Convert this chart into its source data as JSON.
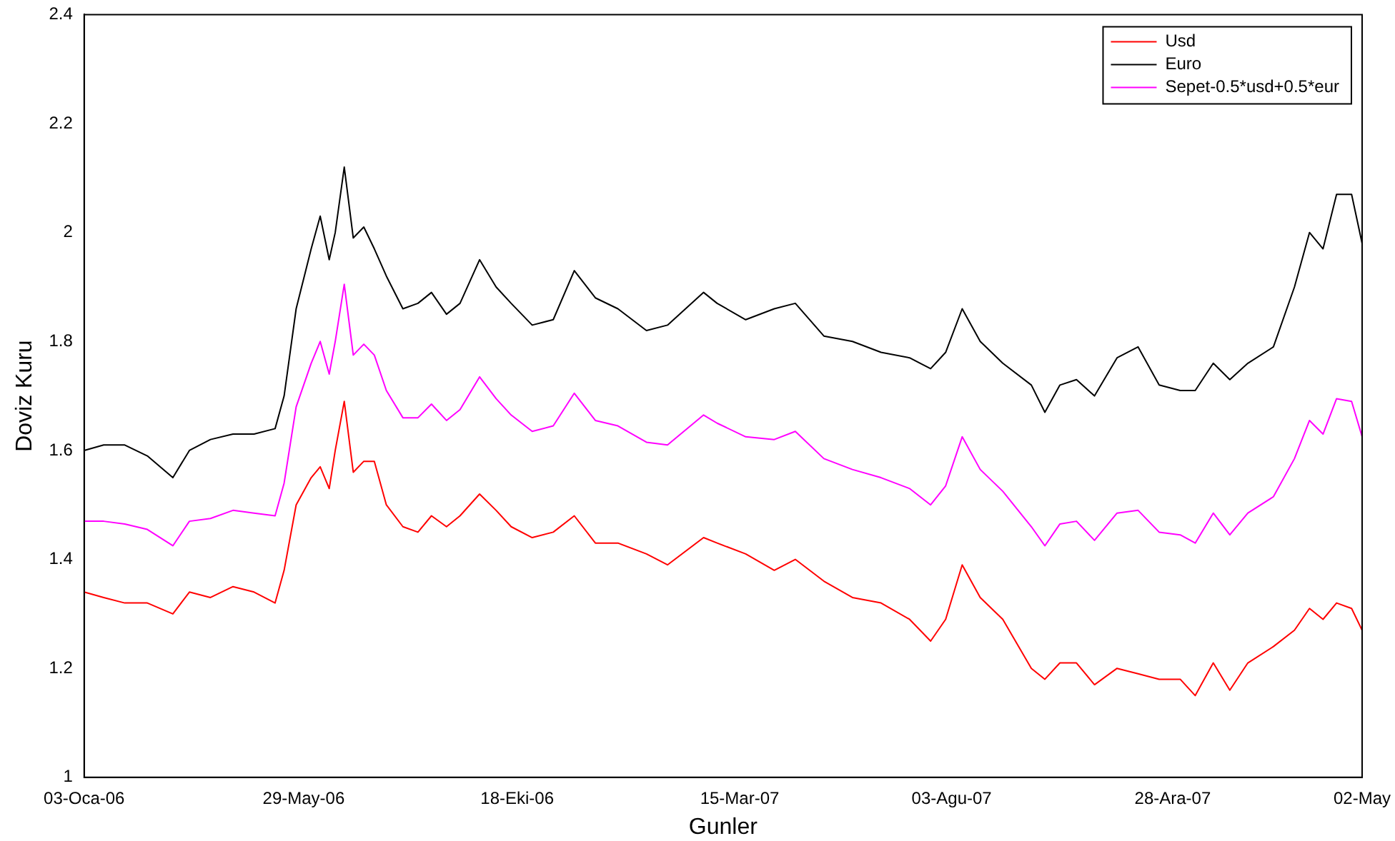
{
  "chart_data": {
    "type": "line",
    "xlabel": "Gunler",
    "ylabel": "Doviz Kuru",
    "x": [
      "2006-01-03",
      "2006-01-16",
      "2006-01-30",
      "2006-02-14",
      "2006-03-03",
      "2006-03-14",
      "2006-03-28",
      "2006-04-12",
      "2006-04-26",
      "2006-05-10",
      "2006-05-16",
      "2006-05-24",
      "2006-06-03",
      "2006-06-09",
      "2006-06-15",
      "2006-06-19",
      "2006-06-25",
      "2006-07-01",
      "2006-07-08",
      "2006-07-15",
      "2006-07-23",
      "2006-08-03",
      "2006-08-13",
      "2006-08-22",
      "2006-09-01",
      "2006-09-10",
      "2006-09-23",
      "2006-10-04",
      "2006-10-14",
      "2006-10-28",
      "2006-11-11",
      "2006-11-25",
      "2006-12-09",
      "2006-12-24",
      "2007-01-12",
      "2007-01-26",
      "2007-02-19",
      "2007-02-28",
      "2007-03-19",
      "2007-04-07",
      "2007-04-21",
      "2007-05-10",
      "2007-05-29",
      "2007-06-17",
      "2007-07-06",
      "2007-07-20",
      "2007-07-30",
      "2007-08-10",
      "2007-08-22",
      "2007-09-06",
      "2007-09-25",
      "2007-10-04",
      "2007-10-14",
      "2007-10-25",
      "2007-11-06",
      "2007-11-21",
      "2007-12-05",
      "2007-12-19",
      "2008-01-02",
      "2008-01-12",
      "2008-01-24",
      "2008-02-04",
      "2008-02-16",
      "2008-03-04",
      "2008-03-18",
      "2008-03-28",
      "2008-04-06",
      "2008-04-15",
      "2008-04-25",
      "2008-05-02"
    ],
    "series": [
      {
        "name": "Usd",
        "color": "#ff0000",
        "values": [
          1.34,
          1.33,
          1.32,
          1.32,
          1.3,
          1.34,
          1.33,
          1.35,
          1.34,
          1.32,
          1.38,
          1.5,
          1.55,
          1.57,
          1.53,
          1.6,
          1.69,
          1.56,
          1.58,
          1.58,
          1.5,
          1.46,
          1.45,
          1.48,
          1.46,
          1.48,
          1.52,
          1.49,
          1.46,
          1.44,
          1.45,
          1.48,
          1.43,
          1.43,
          1.41,
          1.39,
          1.44,
          1.43,
          1.41,
          1.38,
          1.4,
          1.36,
          1.33,
          1.32,
          1.29,
          1.25,
          1.29,
          1.39,
          1.33,
          1.29,
          1.2,
          1.18,
          1.21,
          1.21,
          1.17,
          1.2,
          1.19,
          1.18,
          1.18,
          1.15,
          1.21,
          1.16,
          1.21,
          1.24,
          1.27,
          1.31,
          1.29,
          1.32,
          1.31,
          1.27
        ]
      },
      {
        "name": "Euro",
        "color": "#000000",
        "values": [
          1.6,
          1.61,
          1.61,
          1.59,
          1.55,
          1.6,
          1.62,
          1.63,
          1.63,
          1.64,
          1.7,
          1.86,
          1.97,
          2.03,
          1.95,
          2.0,
          2.12,
          1.99,
          2.01,
          1.97,
          1.92,
          1.86,
          1.87,
          1.89,
          1.85,
          1.87,
          1.95,
          1.9,
          1.87,
          1.83,
          1.84,
          1.93,
          1.88,
          1.86,
          1.82,
          1.83,
          1.89,
          1.87,
          1.84,
          1.86,
          1.87,
          1.81,
          1.8,
          1.78,
          1.77,
          1.75,
          1.78,
          1.86,
          1.8,
          1.76,
          1.72,
          1.67,
          1.72,
          1.73,
          1.7,
          1.77,
          1.79,
          1.72,
          1.71,
          1.71,
          1.76,
          1.73,
          1.76,
          1.79,
          1.9,
          2.0,
          1.97,
          2.07,
          2.07,
          1.98
        ]
      },
      {
        "name": "Sepet-0.5*usd+0.5*eur",
        "color": "#ff00ff",
        "values": [
          1.47,
          1.47,
          1.465,
          1.455,
          1.425,
          1.47,
          1.475,
          1.49,
          1.485,
          1.48,
          1.54,
          1.68,
          1.76,
          1.8,
          1.74,
          1.8,
          1.905,
          1.775,
          1.795,
          1.775,
          1.71,
          1.66,
          1.66,
          1.685,
          1.655,
          1.675,
          1.735,
          1.695,
          1.665,
          1.635,
          1.645,
          1.705,
          1.655,
          1.645,
          1.615,
          1.61,
          1.665,
          1.65,
          1.625,
          1.62,
          1.635,
          1.585,
          1.565,
          1.55,
          1.53,
          1.5,
          1.535,
          1.625,
          1.565,
          1.525,
          1.46,
          1.425,
          1.465,
          1.47,
          1.435,
          1.485,
          1.49,
          1.45,
          1.445,
          1.43,
          1.485,
          1.445,
          1.485,
          1.515,
          1.585,
          1.655,
          1.63,
          1.695,
          1.69,
          1.625
        ]
      }
    ],
    "xlim": [
      "2006-01-03",
      "2008-05-02"
    ],
    "xticks": [
      {
        "value": "2006-01-03",
        "label": "03-Oca-06"
      },
      {
        "value": "2006-05-29",
        "label": "29-May-06"
      },
      {
        "value": "2006-10-18",
        "label": "18-Eki-06"
      },
      {
        "value": "2007-03-15",
        "label": "15-Mar-07"
      },
      {
        "value": "2007-08-03",
        "label": "03-Agu-07"
      },
      {
        "value": "2007-12-28",
        "label": "28-Ara-07"
      },
      {
        "value": "2008-05-02",
        "label": "02-May"
      }
    ],
    "ylim": [
      1,
      2.4
    ],
    "yticks": [
      1,
      1.2,
      1.4,
      1.6,
      1.8,
      2,
      2.2,
      2.4
    ],
    "legend": "top right",
    "marker": "none",
    "line_style": "solid"
  }
}
